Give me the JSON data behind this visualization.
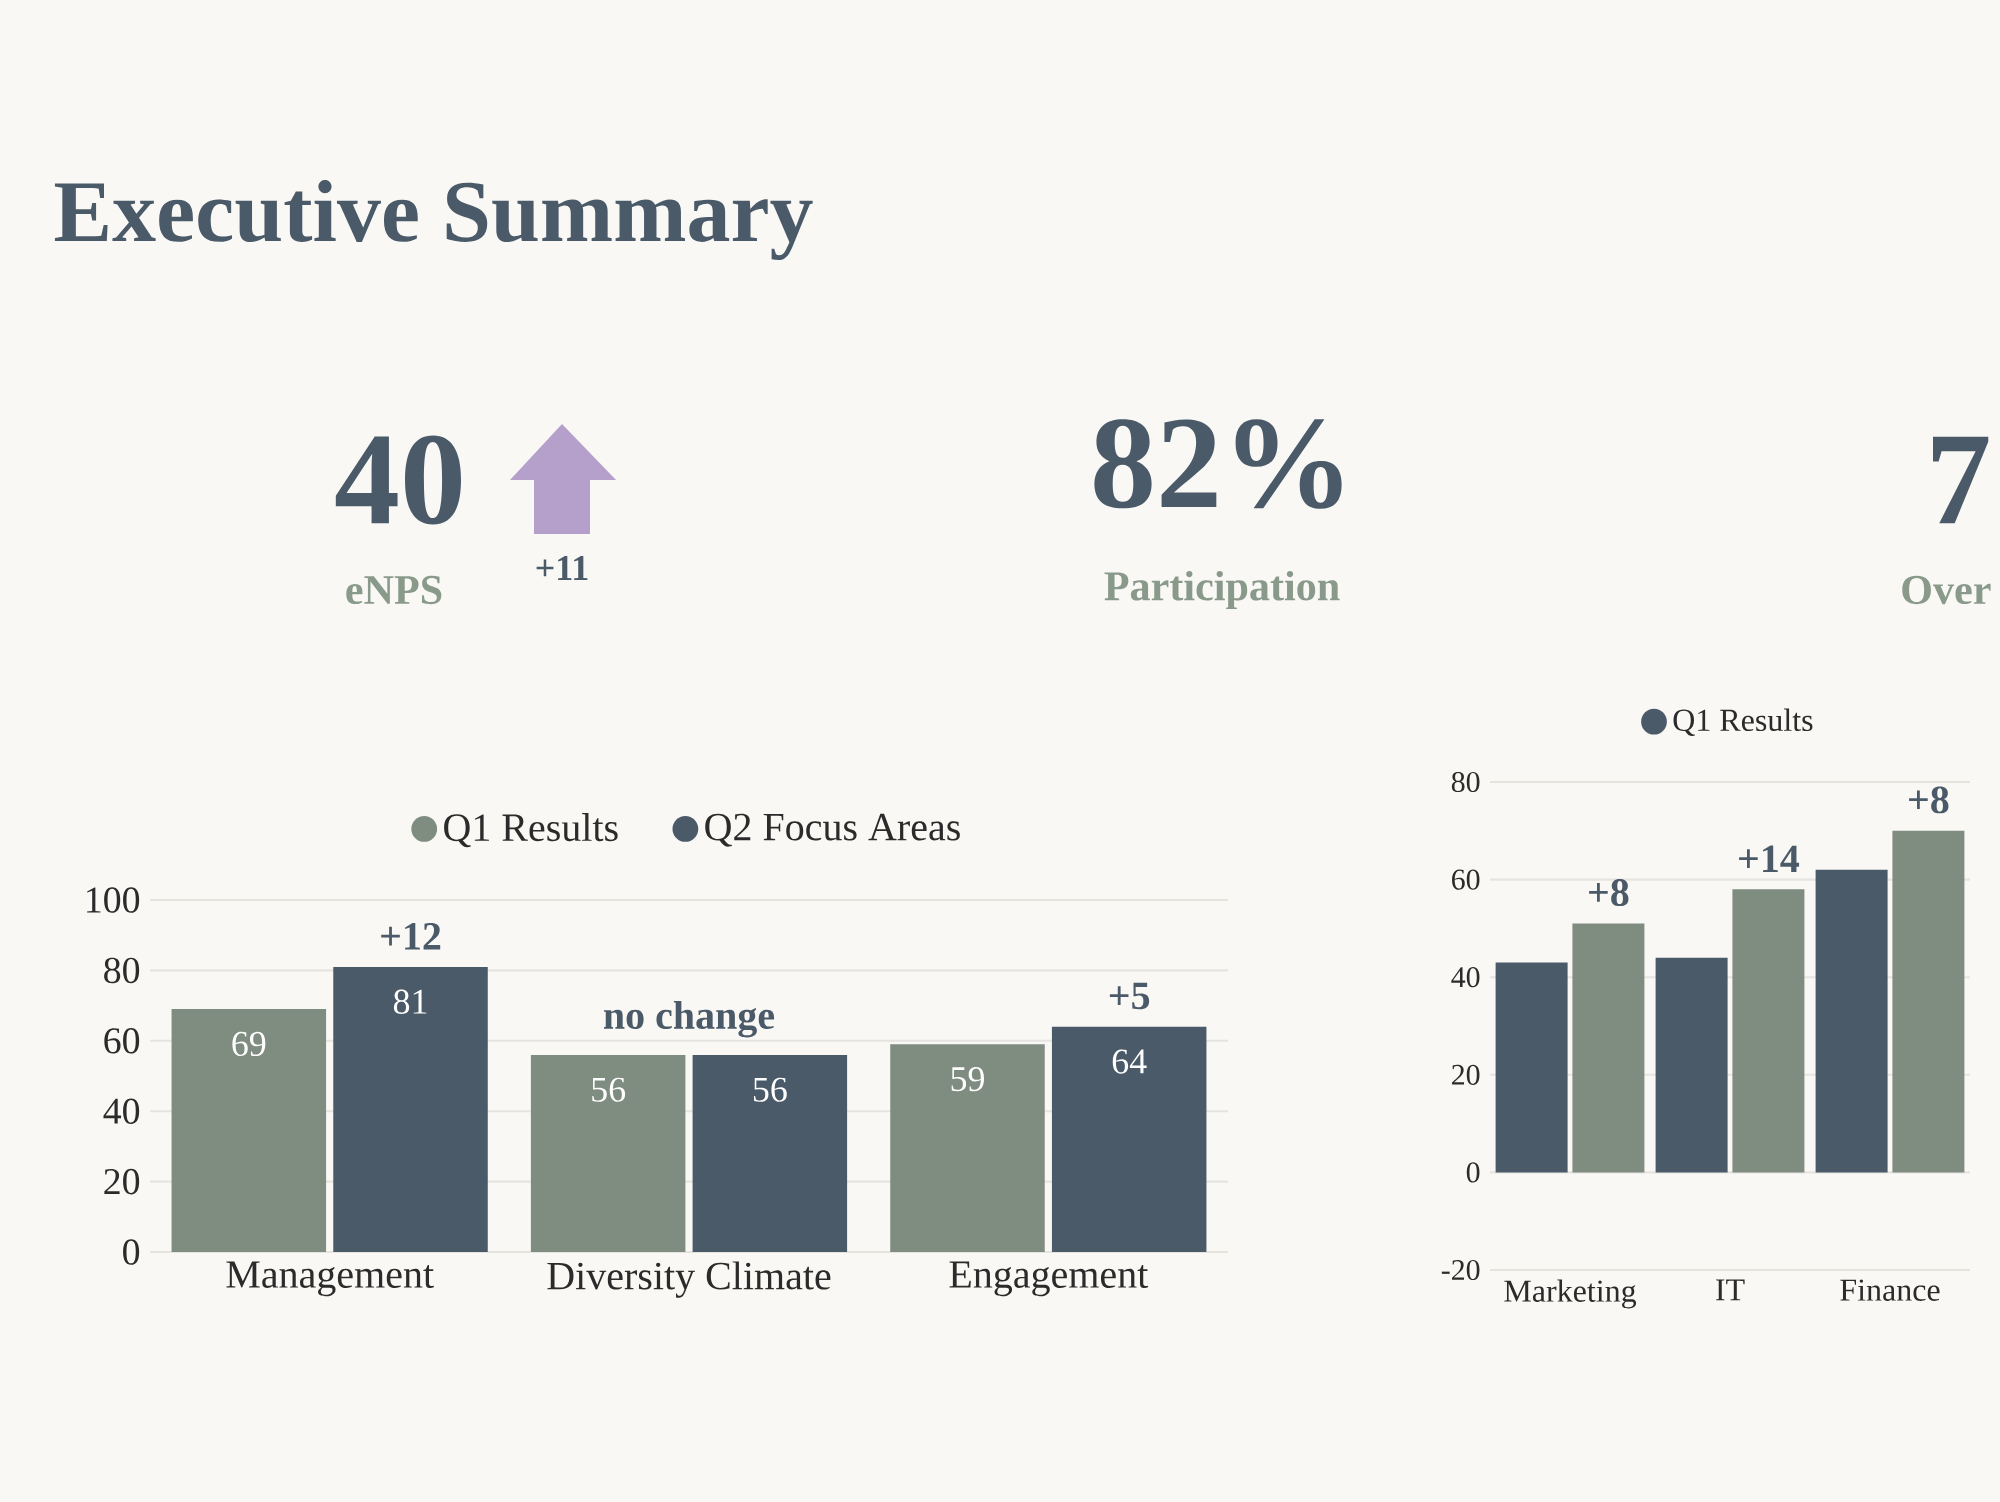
{
  "chart_data": [
    {
      "type": "other",
      "title": "Executive Summary",
      "annotations": [
        "40",
        "eNPS",
        "+11",
        "82%",
        "Participation",
        "7",
        "Over"
      ]
    },
    {
      "type": "bar",
      "categories": [
        "Management",
        "Diversity Climate",
        "Engagement"
      ],
      "series": [
        {
          "name": "Q1 Results",
          "color": "#7f8c80",
          "values": [
            69,
            56,
            59
          ]
        },
        {
          "name": "Q2 Focus Areas",
          "color": "#4b5a69",
          "values": [
            81,
            56,
            64
          ]
        }
      ],
      "ylim": [
        0,
        100
      ],
      "yticks": [
        0,
        20,
        40,
        60,
        80,
        100
      ],
      "grid": "y",
      "legend": "top",
      "marker": "circle",
      "data_labels": true,
      "annotations": [
        "+12",
        "no change",
        "+5"
      ]
    },
    {
      "type": "bar",
      "categories": [
        "Marketing",
        "IT",
        "Finance"
      ],
      "series": [
        {
          "name": "Q1 Results",
          "color": "#4b5a69",
          "values": [
            43,
            44,
            62
          ]
        },
        {
          "color": "#7f8c80",
          "values": [
            51,
            58,
            70
          ]
        }
      ],
      "ylim": [
        -20,
        80
      ],
      "yticks": [
        -20,
        0,
        20,
        40,
        60,
        80
      ],
      "grid": "y",
      "legend": "top",
      "marker": "circle",
      "annotations": [
        "+8",
        "+14",
        "+8"
      ]
    }
  ]
}
